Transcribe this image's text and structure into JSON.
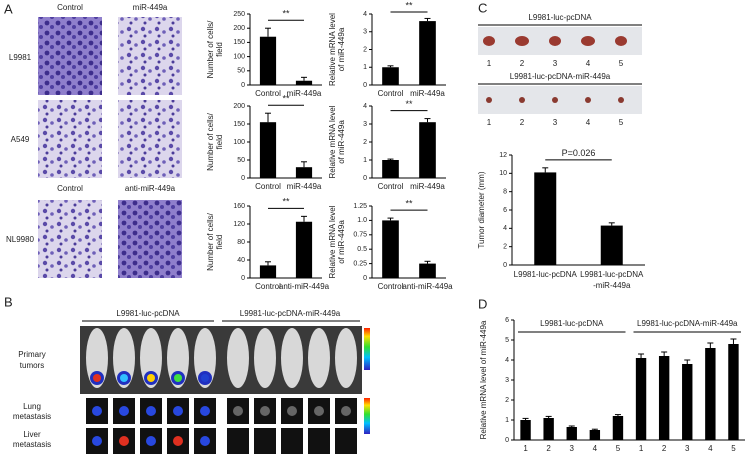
{
  "figure": {
    "panel_labels": [
      "A",
      "B",
      "C",
      "D"
    ],
    "A": {
      "headers_top": [
        "Control",
        "miR-449a"
      ],
      "headers_bottom": [
        "Control",
        "anti-miR-449a"
      ],
      "rows": [
        "L9981",
        "A549",
        "NL9980"
      ]
    },
    "B": {
      "groups": [
        "L9981-luc-pcDNA",
        "L9981-luc-pcDNA-miR-449a"
      ],
      "rows": [
        [
          "Primary",
          "tumors"
        ],
        [
          "Lung",
          "metastasis"
        ],
        [
          "Liver",
          "metastasis"
        ]
      ]
    },
    "C": {
      "rows": [
        "L9981-luc-pcDNA",
        "L9981-luc-pcDNA-miR-449a"
      ],
      "tumor_numbers": [
        "1",
        "2",
        "3",
        "4",
        "5"
      ]
    }
  },
  "chart_data": [
    {
      "type": "bar",
      "ylabel": [
        "Number of cells/",
        "field"
      ],
      "categories": [
        "Control",
        "miR-449a"
      ],
      "values": [
        170,
        15
      ],
      "errors": [
        30,
        12
      ],
      "ylim": [
        0,
        250
      ],
      "yticks": [
        0,
        50,
        100,
        150,
        200,
        250
      ],
      "color": "#000000",
      "annotation": "**"
    },
    {
      "type": "bar",
      "ylabel": [
        "Relative mRNA level",
        "of miR-449a"
      ],
      "categories": [
        "Control",
        "miR-449a"
      ],
      "values": [
        1,
        3.6
      ],
      "errors": [
        0.08,
        0.15
      ],
      "ylim": [
        0,
        4
      ],
      "yticks": [
        0,
        1,
        2,
        3,
        4
      ],
      "color": "#000000",
      "annotation": "**"
    },
    {
      "type": "bar",
      "ylabel": [
        "Number of cells/",
        "field"
      ],
      "categories": [
        "Control",
        "miR-449a"
      ],
      "values": [
        155,
        30
      ],
      "errors": [
        25,
        15
      ],
      "ylim": [
        0,
        200
      ],
      "yticks": [
        0,
        50,
        100,
        150,
        200
      ],
      "color": "#000000",
      "annotation": "**"
    },
    {
      "type": "bar",
      "ylabel": [
        "Relative mRNA level",
        "of miR-449a"
      ],
      "categories": [
        "Control",
        "miR-449a"
      ],
      "values": [
        1,
        3.1
      ],
      "errors": [
        0.05,
        0.2
      ],
      "ylim": [
        0,
        4
      ],
      "yticks": [
        0,
        1,
        2,
        3,
        4
      ],
      "color": "#000000",
      "annotation": "**"
    },
    {
      "type": "bar",
      "ylabel": [
        "Number of cells/",
        "field"
      ],
      "categories": [
        "Control",
        "anti-miR-449a"
      ],
      "values": [
        28,
        125
      ],
      "errors": [
        8,
        12
      ],
      "ylim": [
        0,
        160
      ],
      "yticks": [
        0,
        40,
        80,
        120,
        160
      ],
      "color": "#000000",
      "annotation": "**"
    },
    {
      "type": "bar",
      "ylabel": [
        "Relative mRNA level",
        "of miR-449a"
      ],
      "categories": [
        "Control",
        "anti-miR-449a"
      ],
      "values": [
        1,
        0.25
      ],
      "errors": [
        0.04,
        0.04
      ],
      "ylim": [
        0,
        1.25
      ],
      "yticks": [
        0,
        0.25,
        0.5,
        0.75,
        {
          "value": 1,
          "label": "1.0"
        },
        1.25
      ],
      "color": "#000000",
      "annotation": "**"
    },
    {
      "type": "bar",
      "ylabel": [
        "Tumor diameter (mm)"
      ],
      "categories": [
        [
          "L9981-luc-pcDNA"
        ],
        [
          "L9981-luc-pcDNA",
          "-miR-449a"
        ]
      ],
      "values": [
        10.1,
        4.3
      ],
      "errors": [
        0.5,
        0.3
      ],
      "ylim": [
        0,
        12
      ],
      "yticks": [
        0,
        2,
        4,
        6,
        8,
        10,
        12
      ],
      "color": "#000000",
      "annotation": "P=0.026"
    },
    {
      "type": "bar",
      "ylabel": [
        "Relative mRNA level of miR-449a"
      ],
      "categories": [
        "1",
        "2",
        "3",
        "4",
        "5",
        "1",
        "2",
        "3",
        "4",
        "5"
      ],
      "values": [
        1.0,
        1.1,
        0.65,
        0.5,
        1.2,
        4.1,
        4.2,
        3.8,
        4.6,
        4.8
      ],
      "errors": [
        0.08,
        0.08,
        0.05,
        0.04,
        0.07,
        0.2,
        0.2,
        0.2,
        0.25,
        0.25
      ],
      "ylim": [
        0,
        6
      ],
      "yticks": [
        0,
        1,
        2,
        3,
        4,
        5,
        6
      ],
      "color": "#000000",
      "group_labels": [
        "L9981-luc-pcDNA",
        "L9981-luc-pcDNA-miR-449a"
      ]
    }
  ]
}
